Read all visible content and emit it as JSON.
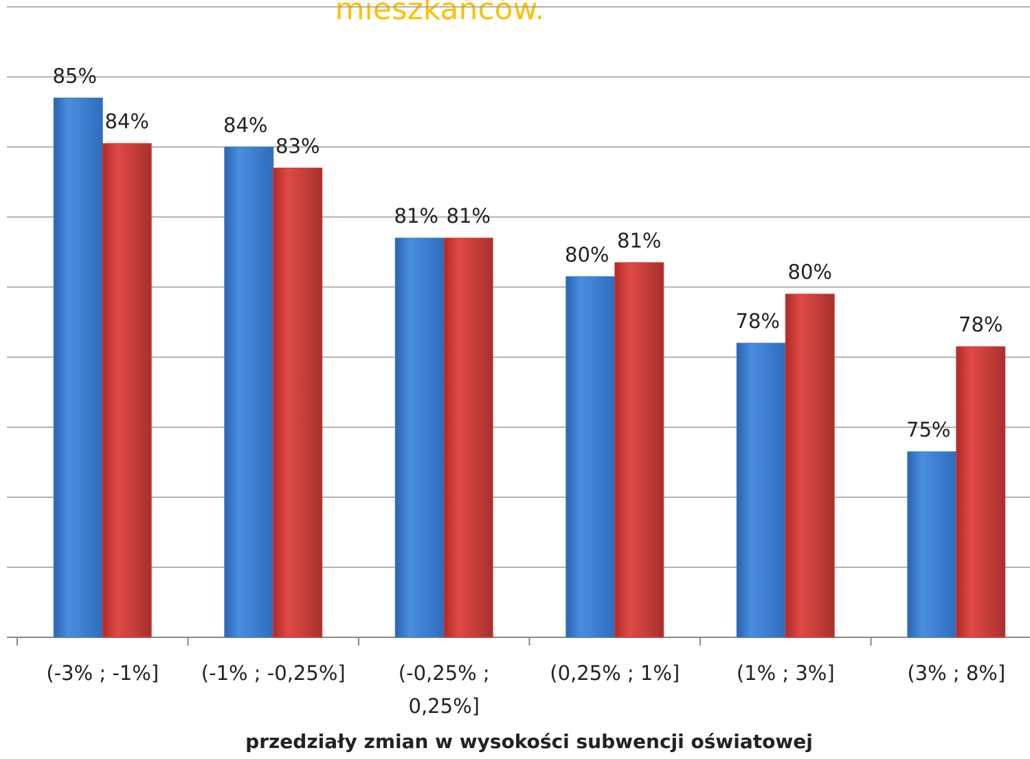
{
  "chart_data": {
    "type": "bar",
    "title": "mieszkańców.",
    "x_label": "przedziały zmian w wysokości subwencji oświatowej",
    "categories": [
      "(-3% ; -1%]",
      "(-1% ; -0,25%]",
      "(-0,25% ; 0,25%]",
      "(0,25% ; 1%]",
      "(1% ; 3%]",
      "(3% ; 8%]"
    ],
    "series": [
      {
        "color": "#3b7fd4",
        "values": [
          85.4,
          84.0,
          81.4,
          80.3,
          78.4,
          75.3
        ],
        "value_labels": [
          "85%",
          "84%",
          "81%",
          "80%",
          "78%",
          "75%"
        ]
      },
      {
        "color": "#d33f3b",
        "values": [
          84.1,
          83.4,
          81.4,
          80.7,
          79.8,
          78.3
        ],
        "value_labels": [
          "84%",
          "83%",
          "81%",
          "81%",
          "80%",
          "78%"
        ]
      }
    ],
    "ylim": [
      70,
      88
    ],
    "yticks": [
      70,
      72,
      74,
      76,
      78,
      80,
      82,
      84,
      86,
      88
    ],
    "grid": true
  }
}
